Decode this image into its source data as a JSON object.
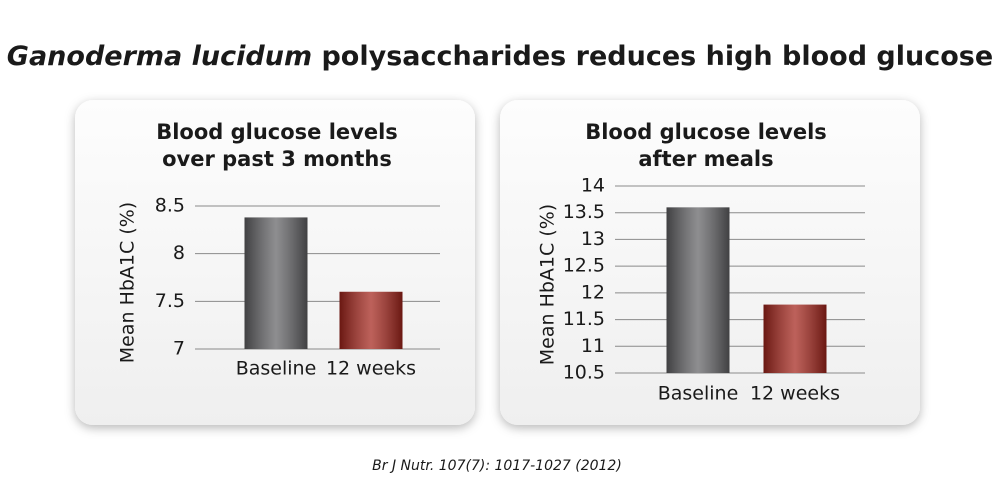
{
  "title": {
    "italic": "Ganoderma lucidum",
    "rest": "polysaccharides reduces high blood glucose"
  },
  "chart_data": [
    {
      "type": "bar",
      "title": [
        "Blood glucose levels",
        "over past 3 months"
      ],
      "ylabel": "Mean HbA1C (%)",
      "categories": [
        "Baseline",
        "12 weeks"
      ],
      "values": [
        8.38,
        7.6
      ],
      "colors": [
        "#626265",
        "#a3241b"
      ],
      "ylim": [
        7,
        8.5
      ],
      "yticks": [
        7,
        7.5,
        8,
        8.5
      ],
      "grid": true
    },
    {
      "type": "bar",
      "title": [
        "Blood glucose levels",
        "after meals"
      ],
      "ylabel": "Mean HbA1C (%)",
      "categories": [
        "Baseline",
        "12 weeks"
      ],
      "values": [
        13.6,
        11.78
      ],
      "colors": [
        "#626265",
        "#a3241b"
      ],
      "ylim": [
        10.5,
        14
      ],
      "yticks": [
        10.5,
        11,
        11.5,
        12,
        12.5,
        13,
        13.5,
        14
      ],
      "grid": true
    }
  ],
  "source": "Br J Nutr. 107(7): 1017-1027 (2012)"
}
